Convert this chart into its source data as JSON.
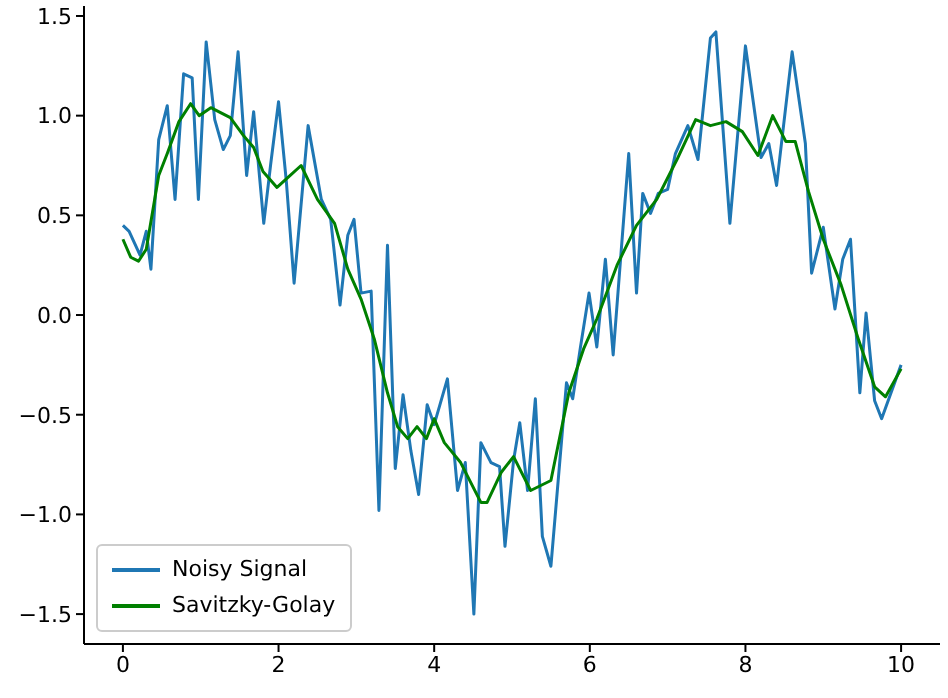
{
  "chart_data": {
    "type": "line",
    "xlim": [
      -0.5,
      10.5
    ],
    "xticks": [
      0,
      2,
      4,
      6,
      8,
      10
    ],
    "ylim": [
      -1.65,
      1.55
    ],
    "yticks": [
      {
        "value": -1.5,
        "label": "−1.5"
      },
      {
        "value": -1,
        "label": "−1.0"
      },
      {
        "value": -0.5,
        "label": "−0.5"
      },
      {
        "value": 0,
        "label": "0.0"
      },
      {
        "value": 0.5,
        "label": "0.5"
      },
      {
        "value": 1,
        "label": "1.0"
      },
      {
        "value": 1.5,
        "label": "1.5"
      }
    ],
    "grid": false,
    "legend": "bottom left",
    "marker": "none",
    "line_style": "solid",
    "series": [
      {
        "name": "Noisy Signal",
        "color": "#1f77b4",
        "x": [
          0,
          0.08,
          0.22,
          0.3,
          0.36,
          0.46,
          0.57,
          0.67,
          0.78,
          0.89,
          0.97,
          1.07,
          1.18,
          1.29,
          1.38,
          1.48,
          1.59,
          1.68,
          1.81,
          1.9,
          2.0,
          2.1,
          2.2,
          2.38,
          2.55,
          2.67,
          2.79,
          2.89,
          2.97,
          3.06,
          3.19,
          3.29,
          3.4,
          3.5,
          3.6,
          3.7,
          3.8,
          3.91,
          4.0,
          4.17,
          4.3,
          4.4,
          4.51,
          4.6,
          4.73,
          4.84,
          4.91,
          5.02,
          5.1,
          5.2,
          5.3,
          5.39,
          5.5,
          5.7,
          5.78,
          5.88,
          5.99,
          6.09,
          6.2,
          6.3,
          6.5,
          6.6,
          6.68,
          6.78,
          6.88,
          7.0,
          7.1,
          7.26,
          7.39,
          7.55,
          7.62,
          7.8,
          8.0,
          8.2,
          8.3,
          8.4,
          8.6,
          8.77,
          8.85,
          9.0,
          9.15,
          9.25,
          9.35,
          9.47,
          9.55,
          9.66,
          9.75,
          10.0
        ],
        "values": [
          0.45,
          0.42,
          0.3,
          0.42,
          0.23,
          0.88,
          1.05,
          0.58,
          1.21,
          1.19,
          0.58,
          1.37,
          0.98,
          0.83,
          0.9,
          1.32,
          0.7,
          1.02,
          0.46,
          0.76,
          1.07,
          0.67,
          0.16,
          0.95,
          0.58,
          0.48,
          0.05,
          0.4,
          0.48,
          0.11,
          0.12,
          -0.98,
          0.35,
          -0.77,
          -0.4,
          -0.68,
          -0.9,
          -0.45,
          -0.55,
          -0.32,
          -0.88,
          -0.74,
          -1.5,
          -0.64,
          -0.74,
          -0.76,
          -1.16,
          -0.73,
          -0.54,
          -0.88,
          -0.42,
          -1.11,
          -1.26,
          -0.34,
          -0.42,
          -0.16,
          0.11,
          -0.16,
          0.28,
          -0.2,
          0.81,
          0.11,
          0.61,
          0.51,
          0.61,
          0.63,
          0.81,
          0.95,
          0.78,
          1.39,
          1.42,
          0.46,
          1.35,
          0.79,
          0.86,
          0.65,
          1.32,
          0.86,
          0.21,
          0.44,
          0.03,
          0.28,
          0.38,
          -0.39,
          0.01,
          -0.43,
          -0.52,
          -0.25
        ]
      },
      {
        "name": "Savitzky-Golay",
        "color": "#008000",
        "x": [
          0,
          0.1,
          0.2,
          0.3,
          0.46,
          0.57,
          0.72,
          0.87,
          0.98,
          1.13,
          1.38,
          1.55,
          1.68,
          1.8,
          1.98,
          2.15,
          2.29,
          2.5,
          2.72,
          2.89,
          3.06,
          3.23,
          3.4,
          3.53,
          3.66,
          3.78,
          3.9,
          4.0,
          4.13,
          4.34,
          4.6,
          4.68,
          4.86,
          5.02,
          5.24,
          5.5,
          5.73,
          5.92,
          6.09,
          6.35,
          6.6,
          6.86,
          7.12,
          7.36,
          7.55,
          7.75,
          7.96,
          8.16,
          8.35,
          8.52,
          8.64,
          8.81,
          9.0,
          9.23,
          9.45,
          9.66,
          9.8,
          10.0
        ],
        "values": [
          0.38,
          0.29,
          0.27,
          0.33,
          0.7,
          0.81,
          0.97,
          1.06,
          1.0,
          1.04,
          0.99,
          0.9,
          0.84,
          0.72,
          0.64,
          0.7,
          0.75,
          0.58,
          0.46,
          0.23,
          0.08,
          -0.12,
          -0.39,
          -0.56,
          -0.62,
          -0.56,
          -0.62,
          -0.52,
          -0.64,
          -0.74,
          -0.94,
          -0.94,
          -0.79,
          -0.71,
          -0.88,
          -0.83,
          -0.39,
          -0.17,
          -0.02,
          0.25,
          0.45,
          0.58,
          0.78,
          0.98,
          0.95,
          0.97,
          0.92,
          0.8,
          1.0,
          0.87,
          0.87,
          0.62,
          0.38,
          0.15,
          -0.12,
          -0.36,
          -0.41,
          -0.27
        ]
      }
    ]
  }
}
